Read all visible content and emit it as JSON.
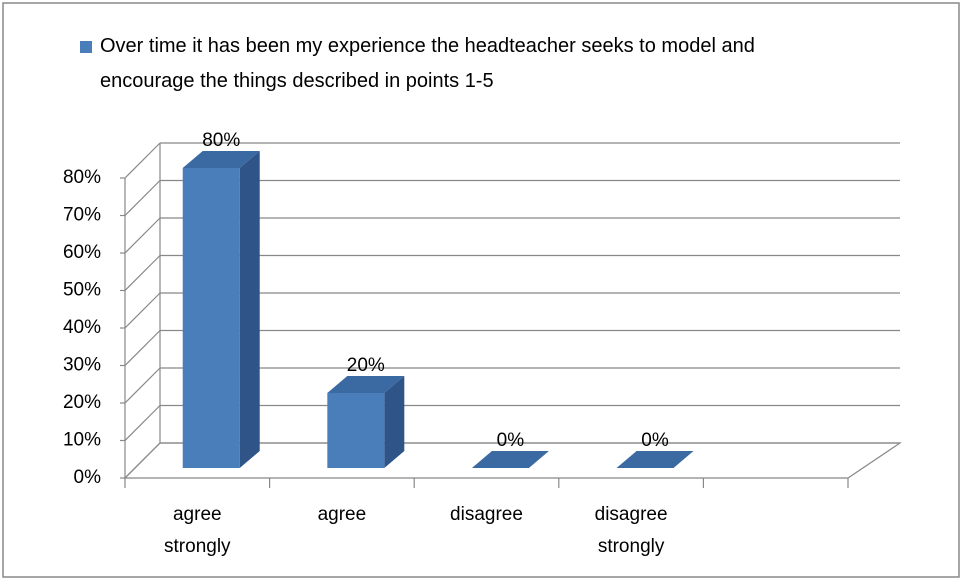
{
  "chart_data": {
    "type": "bar3d",
    "title": "Over time it has been my experience the headteacher seeks to model and encourage the things described in points 1-5",
    "categories": [
      "agree strongly",
      "agree",
      "disagree",
      "disagree strongly",
      null
    ],
    "values": [
      80,
      20,
      0,
      0,
      null
    ],
    "value_labels": [
      "80%",
      "20%",
      "0%",
      "0%",
      null
    ],
    "color": "#4a7ebb",
    "ylim": [
      0,
      80
    ],
    "yticks": [
      {
        "value": 0,
        "label": "0%"
      },
      {
        "value": 10,
        "label": "10%"
      },
      {
        "value": 20,
        "label": "20%"
      },
      {
        "value": 30,
        "label": "30%"
      },
      {
        "value": 40,
        "label": "40%"
      },
      {
        "value": 50,
        "label": "50%"
      },
      {
        "value": 60,
        "label": "60%"
      },
      {
        "value": 70,
        "label": "70%"
      },
      {
        "value": 80,
        "label": "80%"
      }
    ],
    "grid": true,
    "legend": "top"
  }
}
